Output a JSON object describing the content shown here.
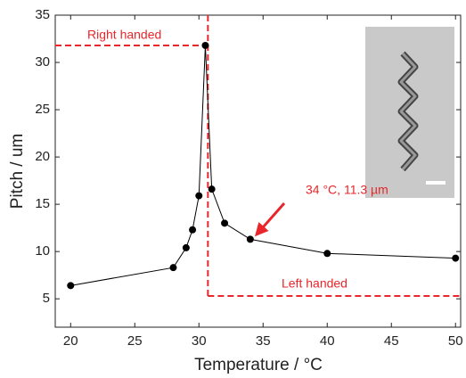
{
  "chart_data": {
    "type": "line",
    "x_label": "Temperature / °C",
    "y_label": "Pitch / um",
    "x": [
      20,
      28,
      29,
      29.5,
      30,
      30.5,
      31,
      32,
      34,
      40,
      50
    ],
    "values": [
      6.4,
      8.3,
      10.4,
      12.3,
      15.9,
      31.8,
      16.6,
      13.0,
      11.3,
      9.8,
      9.3
    ],
    "color": "#000000",
    "xlim": [
      18.8,
      50.4
    ],
    "xticks": [
      20,
      25,
      30,
      35,
      40,
      45,
      50
    ],
    "ylim": [
      2,
      35
    ],
    "yticks": [
      5,
      10,
      15,
      20,
      25,
      30,
      35
    ],
    "reference_lines": {
      "x": 30.7,
      "y_top": 31.8,
      "y_bottom": 5.3,
      "color": "#e8262b"
    },
    "annotations": {
      "right": "Right handed",
      "left": "Left handed",
      "point": "34 °C, 11.3 µm"
    }
  }
}
